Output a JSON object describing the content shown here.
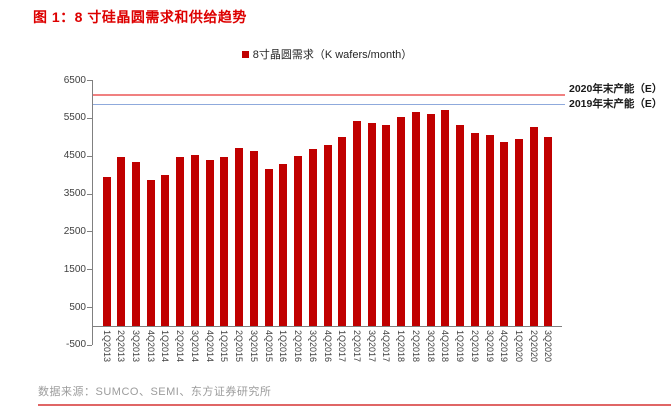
{
  "title": "图 1：8 寸硅晶圆需求和供给趋势",
  "legend": {
    "label": "8寸晶圆需求（K wafers/month）",
    "swatch_color": "#c00000"
  },
  "chart_data": {
    "type": "bar",
    "title": "8寸晶圆需求（K wafers/month）",
    "categories": [
      "1Q2013",
      "2Q2013",
      "3Q2013",
      "4Q2013",
      "1Q2014",
      "2Q2014",
      "3Q2014",
      "4Q2014",
      "1Q2015",
      "2Q2015",
      "3Q2015",
      "4Q2015",
      "1Q2016",
      "2Q2016",
      "3Q2016",
      "4Q2016",
      "1Q2017",
      "2Q2017",
      "3Q2017",
      "4Q2017",
      "1Q2018",
      "2Q2018",
      "3Q2018",
      "4Q2018",
      "1Q2019",
      "2Q2019",
      "3Q2019",
      "4Q2019",
      "1Q2020",
      "2Q2020",
      "3Q2020"
    ],
    "values": [
      3950,
      4470,
      4340,
      3860,
      3980,
      4460,
      4530,
      4400,
      4460,
      4700,
      4620,
      4150,
      4270,
      4490,
      4690,
      4780,
      5000,
      5420,
      5360,
      5310,
      5530,
      5650,
      5600,
      5700,
      5320,
      5110,
      5050,
      4870,
      4930,
      5250,
      5000
    ],
    "bar_color": "#c00000",
    "ylim": [
      -500,
      6500
    ],
    "yticks": [
      6500,
      5500,
      4500,
      3500,
      2500,
      1500,
      500,
      -500
    ],
    "grid": false,
    "reference_lines": [
      {
        "label": "2020年末产能（E）",
        "value": 6100,
        "color": "#f08080"
      },
      {
        "label": "2019年末产能（E）",
        "value": 5850,
        "color": "#8faadc"
      }
    ]
  },
  "source": "数据来源：SUMCO、SEMI、东方证券研究所",
  "colors": {
    "title_red": "#dd0000",
    "bar_red": "#c00000",
    "capacity_2020_line": "#f08080",
    "capacity_2019_line": "#8faadc",
    "divider_red": "#e06666",
    "axis_gray": "#808080",
    "source_gray": "#9c9c9c"
  }
}
